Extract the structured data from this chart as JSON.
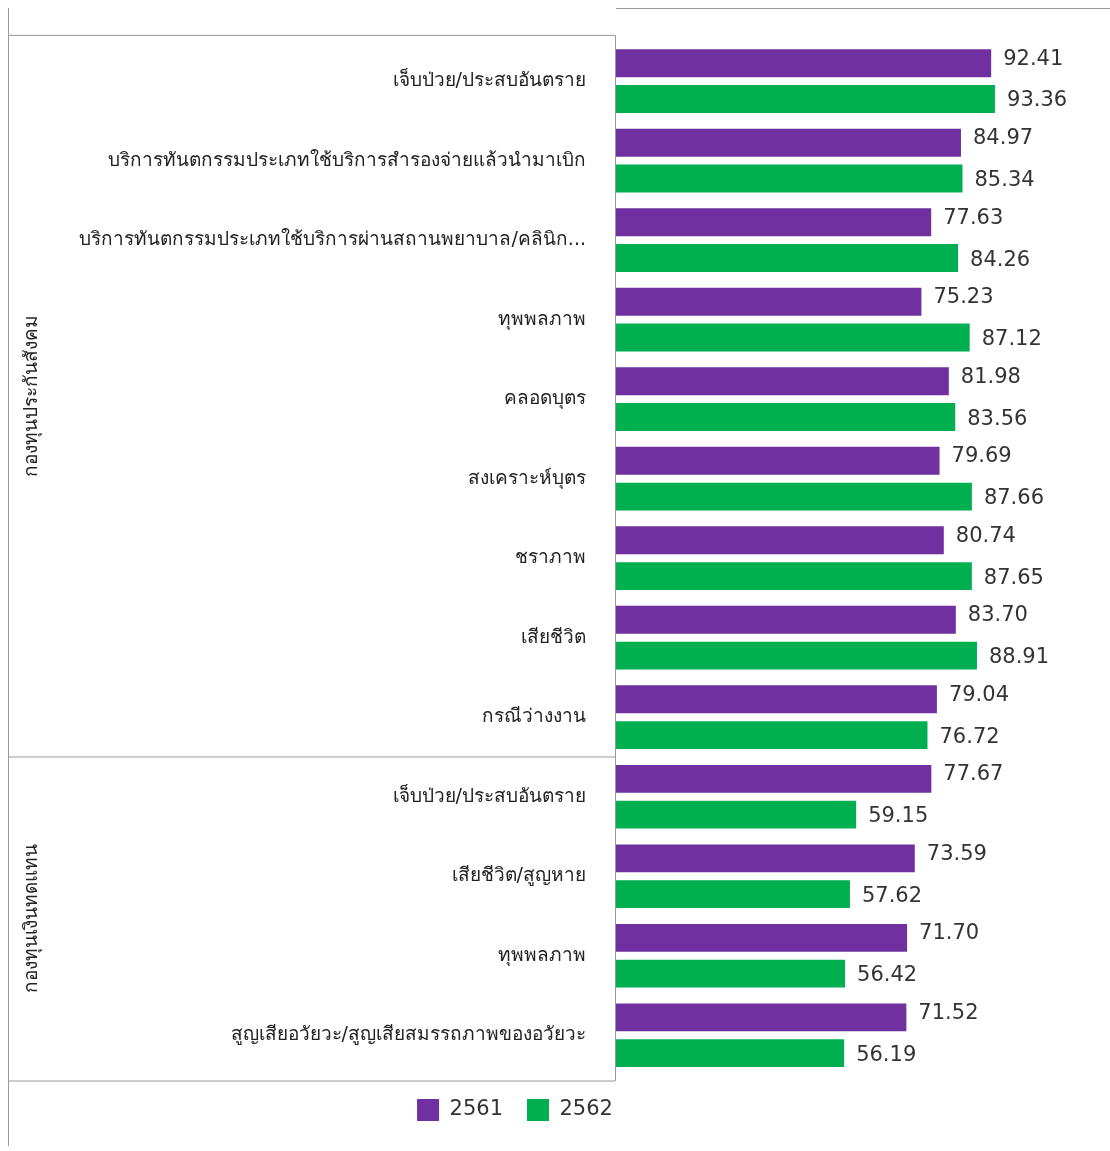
{
  "chart_data": {
    "type": "bar",
    "orientation": "horizontal",
    "categories": [
      "เจ็บป่วย/ประสบอันตราย",
      "บริการทันตกรรมประเภทใช้บริการสำรองจ่ายแล้วนำมาเบิก",
      "บริการทันตกรรมประเภทใช้บริการผ่านสถานพยาบาล/คลินิก...",
      "ทุพพลภาพ",
      "คลอดบุตร",
      "สงเคราะห์บุตร",
      "ชราภาพ",
      "เสียชีวิต",
      "กรณีว่างงาน",
      "เจ็บป่วย/ประสบอันตราย",
      "เสียชีวิต/สูญหาย",
      "ทุพพลภาพ",
      "สูญเสียอวัยวะ/สูญเสียสมรรถภาพของอวัยวะ"
    ],
    "series": [
      {
        "name": "2561",
        "color": "#7030a0",
        "values": [
          92.41,
          84.97,
          77.63,
          75.23,
          81.98,
          79.69,
          80.74,
          83.7,
          79.04,
          77.67,
          73.59,
          71.7,
          71.52
        ],
        "value_labels": [
          "92.41",
          "84.97",
          "77.63",
          "75.23",
          "81.98",
          "79.69",
          "80.74",
          "83.70",
          "79.04",
          "77.67",
          "73.59",
          "71.70",
          "71.52"
        ]
      },
      {
        "name": "2562",
        "color": "#00b050",
        "values": [
          93.36,
          85.34,
          84.26,
          87.12,
          83.56,
          87.66,
          87.65,
          88.91,
          76.72,
          59.15,
          57.62,
          56.42,
          56.19
        ],
        "value_labels": [
          "93.36",
          "85.34",
          "84.26",
          "87.12",
          "83.56",
          "87.66",
          "87.65",
          "88.91",
          "76.72",
          "59.15",
          "57.62",
          "56.42",
          "56.19"
        ]
      }
    ],
    "legend": "bottom",
    "annotations": [
      "กองทุนประกันสังคม",
      "กองทุนเงินทดแทน"
    ]
  }
}
